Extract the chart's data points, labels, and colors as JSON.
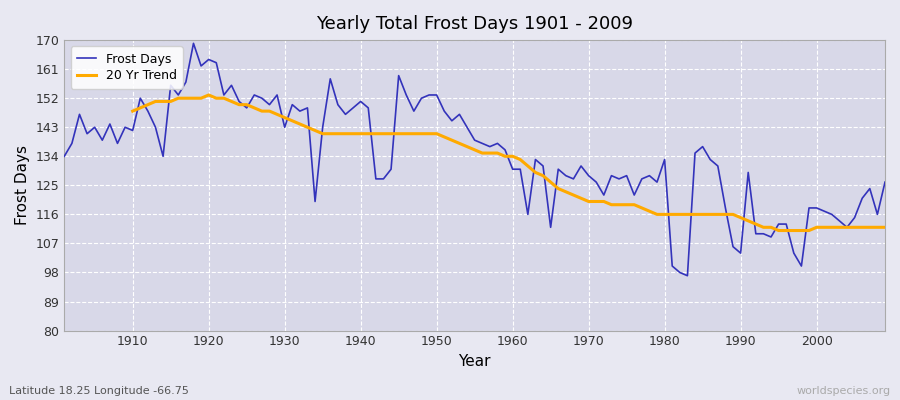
{
  "title": "Yearly Total Frost Days 1901 - 2009",
  "xlabel": "Year",
  "ylabel": "Frost Days",
  "footer_left": "Latitude 18.25 Longitude -66.75",
  "footer_right": "worldspecies.org",
  "legend_labels": [
    "Frost Days",
    "20 Yr Trend"
  ],
  "line_color": "#3333bb",
  "trend_color": "#ffaa00",
  "bg_color": "#e8e8f2",
  "plot_bg": "#d8d8e8",
  "ylim": [
    80,
    170
  ],
  "yticks": [
    80,
    89,
    98,
    107,
    116,
    125,
    134,
    143,
    152,
    161,
    170
  ],
  "xlim": [
    1901,
    2009
  ],
  "xticks": [
    1910,
    1920,
    1930,
    1940,
    1950,
    1960,
    1970,
    1980,
    1990,
    2000
  ],
  "years": [
    1901,
    1902,
    1903,
    1904,
    1905,
    1906,
    1907,
    1908,
    1909,
    1910,
    1911,
    1912,
    1913,
    1914,
    1915,
    1916,
    1917,
    1918,
    1919,
    1920,
    1921,
    1922,
    1923,
    1924,
    1925,
    1926,
    1927,
    1928,
    1929,
    1930,
    1931,
    1932,
    1933,
    1934,
    1935,
    1936,
    1937,
    1938,
    1939,
    1940,
    1941,
    1942,
    1943,
    1944,
    1945,
    1946,
    1947,
    1948,
    1949,
    1950,
    1951,
    1952,
    1953,
    1954,
    1955,
    1956,
    1957,
    1958,
    1959,
    1960,
    1961,
    1962,
    1963,
    1964,
    1965,
    1966,
    1967,
    1968,
    1969,
    1970,
    1971,
    1972,
    1973,
    1974,
    1975,
    1976,
    1977,
    1978,
    1979,
    1980,
    1981,
    1982,
    1983,
    1984,
    1985,
    1986,
    1987,
    1988,
    1989,
    1990,
    1991,
    1992,
    1993,
    1994,
    1995,
    1996,
    1997,
    1998,
    1999,
    2000,
    2001,
    2002,
    2003,
    2004,
    2005,
    2006,
    2007,
    2008,
    2009
  ],
  "frost_days": [
    134,
    138,
    147,
    141,
    143,
    139,
    144,
    138,
    143,
    142,
    152,
    148,
    143,
    134,
    156,
    153,
    157,
    169,
    162,
    164,
    163,
    153,
    156,
    151,
    149,
    153,
    152,
    150,
    153,
    143,
    150,
    148,
    149,
    120,
    143,
    158,
    150,
    147,
    149,
    151,
    149,
    127,
    127,
    130,
    159,
    153,
    148,
    152,
    153,
    153,
    148,
    145,
    147,
    143,
    139,
    138,
    137,
    138,
    136,
    130,
    130,
    116,
    133,
    131,
    112,
    130,
    128,
    127,
    131,
    128,
    126,
    122,
    128,
    127,
    128,
    122,
    127,
    128,
    126,
    133,
    100,
    98,
    97,
    135,
    137,
    133,
    131,
    118,
    106,
    104,
    129,
    110,
    110,
    109,
    113,
    113,
    104,
    100,
    118,
    118,
    117,
    116,
    114,
    112,
    115,
    121,
    124,
    116,
    126
  ],
  "trend_years": [
    1910,
    1911,
    1912,
    1913,
    1914,
    1915,
    1916,
    1917,
    1918,
    1919,
    1920,
    1921,
    1922,
    1923,
    1924,
    1925,
    1926,
    1927,
    1928,
    1929,
    1930,
    1931,
    1932,
    1933,
    1934,
    1935,
    1936,
    1937,
    1938,
    1939,
    1940,
    1941,
    1942,
    1943,
    1944,
    1945,
    1946,
    1947,
    1948,
    1949,
    1950,
    1951,
    1952,
    1953,
    1954,
    1955,
    1956,
    1957,
    1958,
    1959,
    1960,
    1961,
    1962,
    1963,
    1964,
    1965,
    1966,
    1967,
    1968,
    1969,
    1970,
    1971,
    1972,
    1973,
    1974,
    1975,
    1976,
    1977,
    1978,
    1979,
    1980,
    1981,
    1982,
    1983,
    1984,
    1985,
    1986,
    1987,
    1988,
    1989,
    1990,
    1991,
    1992,
    1993,
    1994,
    1995,
    1996,
    1997,
    1998,
    1999,
    2000,
    2001,
    2002,
    2003,
    2004,
    2005,
    2006,
    2007,
    2008,
    2009
  ],
  "trend_values": [
    148,
    149,
    150,
    151,
    151,
    151,
    152,
    152,
    152,
    152,
    153,
    152,
    152,
    151,
    150,
    150,
    149,
    148,
    148,
    147,
    146,
    145,
    144,
    143,
    142,
    141,
    141,
    141,
    141,
    141,
    141,
    141,
    141,
    141,
    141,
    141,
    141,
    141,
    141,
    141,
    141,
    140,
    139,
    138,
    137,
    136,
    135,
    135,
    135,
    134,
    134,
    133,
    131,
    129,
    128,
    126,
    124,
    123,
    122,
    121,
    120,
    120,
    120,
    119,
    119,
    119,
    119,
    118,
    117,
    116,
    116,
    116,
    116,
    116,
    116,
    116,
    116,
    116,
    116,
    116,
    115,
    114,
    113,
    112,
    112,
    111,
    111,
    111,
    111,
    111,
    112,
    112,
    112,
    112,
    112,
    112,
    112,
    112,
    112,
    112
  ]
}
